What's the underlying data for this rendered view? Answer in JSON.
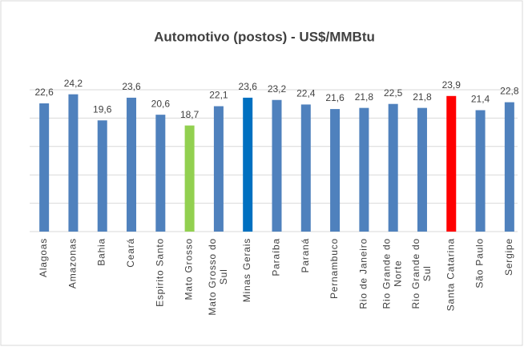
{
  "chart_data": {
    "type": "bar",
    "title": "Automotivo (postos) - US$/MMBtu",
    "categories": [
      "Alagoas",
      "Amazonas",
      "Bahia",
      "Ceará",
      "Espirito Santo",
      "Mato Grosso",
      "Mato Grosso do Sul",
      "Minas Gerais",
      "Paraíba",
      "Paraná",
      "Pernambuco",
      "Rio de Janeiro",
      "Rio Grande do Norte",
      "Rio Grande do Sul",
      "Santa Catarina",
      "São Paulo",
      "Sergipe"
    ],
    "values": [
      22.6,
      24.2,
      19.6,
      23.6,
      20.6,
      18.7,
      22.1,
      23.6,
      23.2,
      22.4,
      21.6,
      21.8,
      22.5,
      21.8,
      23.9,
      21.4,
      22.8
    ],
    "value_labels": [
      "22,6",
      "24,2",
      "19,6",
      "23,6",
      "20,6",
      "18,7",
      "22,1",
      "23,6",
      "23,2",
      "22,4",
      "21,6",
      "21,8",
      "22,5",
      "21,8",
      "23,9",
      "21,4",
      "22,8"
    ],
    "colors": [
      "#4f81bd",
      "#4f81bd",
      "#4f81bd",
      "#4f81bd",
      "#4f81bd",
      "#92d050",
      "#4f81bd",
      "#0070c0",
      "#4f81bd",
      "#4f81bd",
      "#4f81bd",
      "#4f81bd",
      "#4f81bd",
      "#4f81bd",
      "#ff0000",
      "#4f81bd",
      "#4f81bd"
    ],
    "ylim": [
      0,
      25
    ],
    "yticks": [
      0,
      5,
      10,
      15,
      20,
      25
    ],
    "grid": true
  }
}
